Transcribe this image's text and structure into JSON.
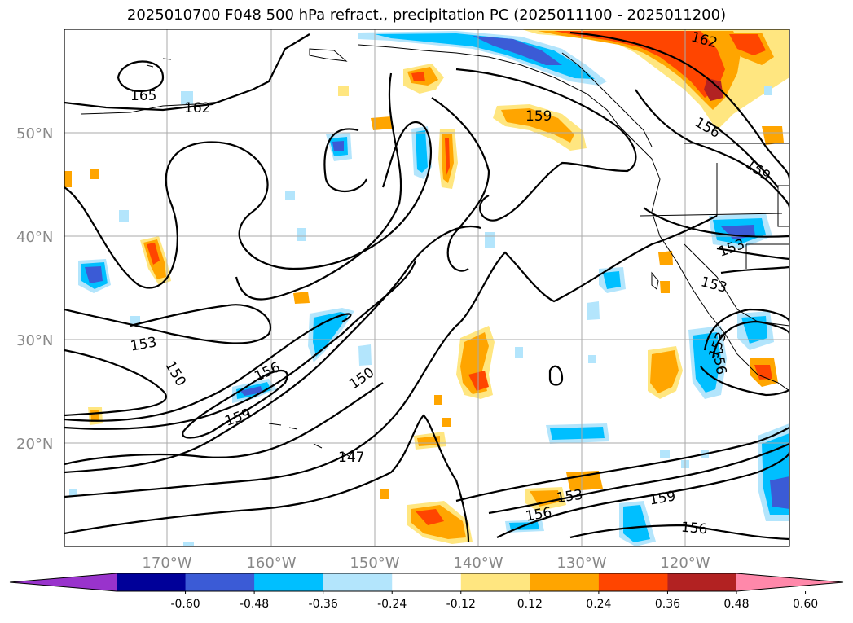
{
  "title": "2025010700 F048 500 hPa refract., precipitation PC (2025011100 - 2025011200)",
  "lat_labels": [
    "50°N",
    "40°N",
    "30°N",
    "20°N"
  ],
  "lon_labels": [
    "170°W",
    "160°W",
    "150°W",
    "140°W",
    "130°W",
    "120°W"
  ],
  "contour_labels": [
    {
      "text": "165"
    },
    {
      "text": "162"
    },
    {
      "text": "162"
    },
    {
      "text": "159"
    },
    {
      "text": "156"
    },
    {
      "text": "159"
    },
    {
      "text": "153"
    },
    {
      "text": "153"
    },
    {
      "text": "153"
    },
    {
      "text": "150"
    },
    {
      "text": "156"
    },
    {
      "text": "159"
    },
    {
      "text": "150"
    },
    {
      "text": "147"
    },
    {
      "text": "153"
    },
    {
      "text": "156"
    },
    {
      "text": "159"
    },
    {
      "text": "156"
    },
    {
      "text": "153"
    },
    {
      "text": "156"
    }
  ],
  "colorbar": {
    "ticks": [
      "-0.60",
      "-0.48",
      "-0.36",
      "-0.24",
      "-0.12",
      "0.12",
      "0.24",
      "0.36",
      "0.48",
      "0.60"
    ],
    "colors": [
      "#9933cc",
      "#000099",
      "#3b5bd6",
      "#00bfff",
      "#b3e5fc",
      "#ffffff",
      "#ffe680",
      "#ffa500",
      "#ff4500",
      "#b22222",
      "#ff88aa"
    ]
  },
  "colors": {
    "contour": "#000000",
    "coast": "#000000",
    "grid": "#aaaaaa"
  }
}
